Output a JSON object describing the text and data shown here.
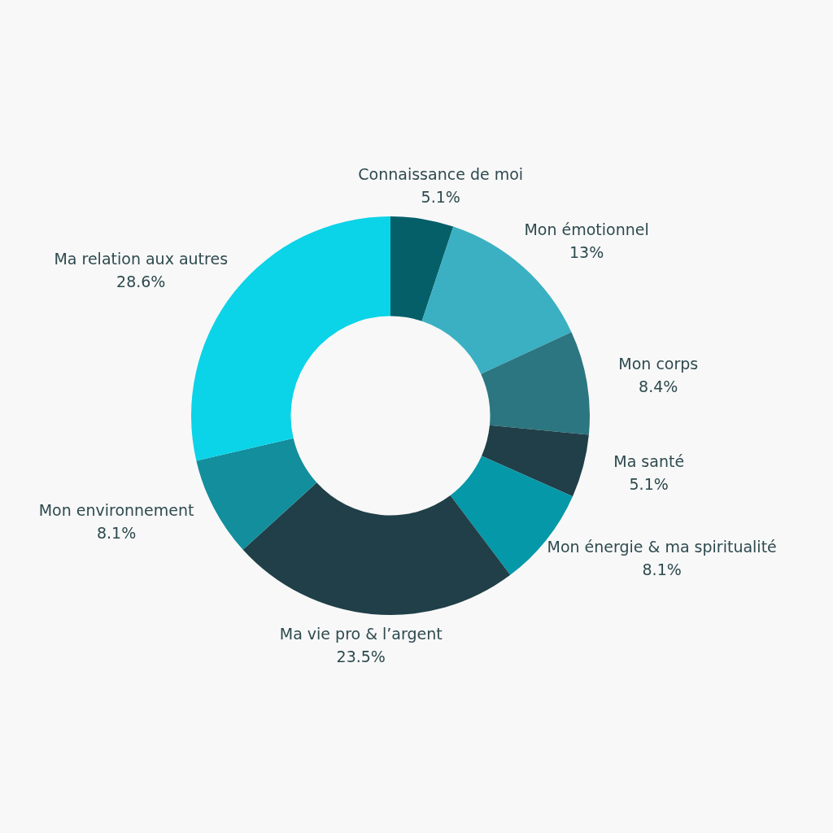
{
  "chart_data": {
    "type": "donut",
    "categories": [
      "Connaissance de moi",
      "Mon émotionnel",
      "Mon corps",
      "Ma santé",
      "Mon énergie & ma spiritualité",
      "Ma vie pro & l’argent",
      "Mon environnement",
      "Ma relation aux autres"
    ],
    "values": [
      5.1,
      13,
      8.4,
      5.1,
      8.1,
      23.5,
      8.1,
      28.6
    ],
    "value_labels": [
      "5.1%",
      "13%",
      "8.4%",
      "5.1%",
      "8.1%",
      "23.5%",
      "8.1%",
      "28.6%"
    ],
    "colors": [
      "#045f69",
      "#3ab0c2",
      "#2c7681",
      "#203f48",
      "#0598a8",
      "#203f48",
      "#128e9c",
      "#0bd3e8"
    ],
    "legend": false
  }
}
